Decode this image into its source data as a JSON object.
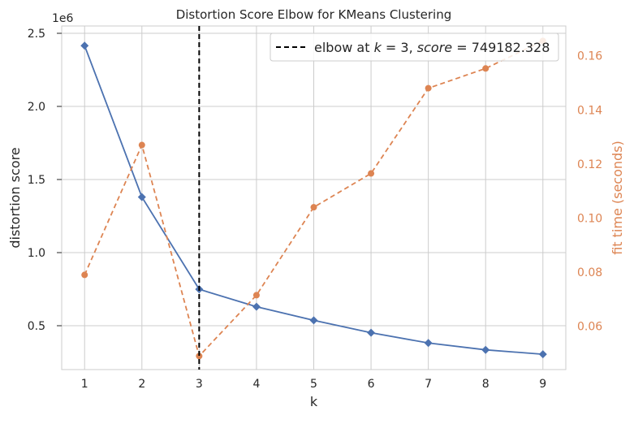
{
  "chart_data": {
    "type": "line",
    "title": "Distortion Score Elbow for KMeans Clustering",
    "xlabel": "k",
    "ylabel": "distortion score",
    "y2label": "fit time (seconds)",
    "y_offset_label": "1e6",
    "x": [
      1,
      2,
      3,
      4,
      5,
      6,
      7,
      8,
      9
    ],
    "xlim": [
      0.6,
      9.4
    ],
    "ylim": [
      200000,
      2550000
    ],
    "y2lim": [
      0.044,
      0.171
    ],
    "x_ticks": [
      "1",
      "2",
      "3",
      "4",
      "5",
      "6",
      "7",
      "8",
      "9"
    ],
    "y_ticks": [
      {
        "value": 500000,
        "label": "0.5"
      },
      {
        "value": 1000000,
        "label": "1.0"
      },
      {
        "value": 1500000,
        "label": "1.5"
      },
      {
        "value": 2000000,
        "label": "2.0"
      },
      {
        "value": 2500000,
        "label": "2.5"
      }
    ],
    "y2_ticks": [
      {
        "value": 0.06,
        "label": "0.06"
      },
      {
        "value": 0.08,
        "label": "0.08"
      },
      {
        "value": 0.1,
        "label": "0.10"
      },
      {
        "value": 0.12,
        "label": "0.12"
      },
      {
        "value": 0.14,
        "label": "0.14"
      },
      {
        "value": 0.16,
        "label": "0.16"
      }
    ],
    "series": [
      {
        "axis": "left",
        "marker": "diamond",
        "line": "solid",
        "color": "#4c72b0",
        "values": [
          2415000,
          1380000,
          749182.328,
          630000,
          537000,
          452000,
          382000,
          335000,
          305000
        ]
      },
      {
        "axis": "right",
        "marker": "circle",
        "line": "dashed",
        "color": "#dd8452",
        "values": [
          0.079,
          0.127,
          0.049,
          0.0715,
          0.104,
          0.1165,
          0.148,
          0.1553,
          0.1655
        ]
      }
    ],
    "elbow": {
      "k": 3,
      "label": "elbow at $k=3$, $score=749182.328$",
      "label_parts": [
        "elbow at ",
        "k",
        " = 3, ",
        "score",
        " = 749182.328"
      ],
      "color": "#000000",
      "line": "dashed"
    },
    "legend_position": "top-right",
    "grid": true,
    "colors": {
      "left_axis": "#262626",
      "right_axis": "#dd8452",
      "grid": "#cccccc",
      "spine": "#cccccc"
    }
  }
}
